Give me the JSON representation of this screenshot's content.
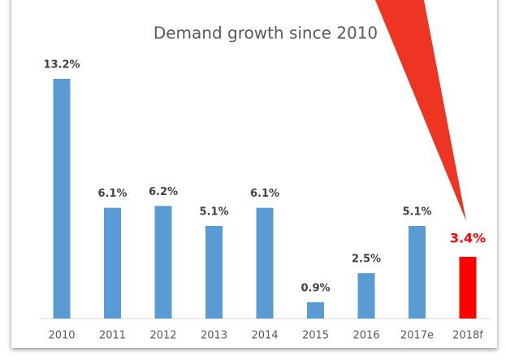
{
  "chart_data": {
    "type": "bar",
    "title": "Demand growth since 2010",
    "categories": [
      "2010",
      "2011",
      "2012",
      "2013",
      "2014",
      "2015",
      "2016",
      "2017e",
      "2018f"
    ],
    "values": [
      13.2,
      6.1,
      6.2,
      5.1,
      6.1,
      0.9,
      2.5,
      5.1,
      3.4
    ],
    "value_labels": [
      "13.2%",
      "6.1%",
      "6.2%",
      "5.1%",
      "6.1%",
      "0.9%",
      "2.5%",
      "5.1%",
      "3.4%"
    ],
    "color": "#5b9bd5",
    "colors": [
      "#5b9bd5",
      "#5b9bd5",
      "#5b9bd5",
      "#5b9bd5",
      "#5b9bd5",
      "#5b9bd5",
      "#5b9bd5",
      "#5b9bd5",
      "#ff0000"
    ]
  }
}
